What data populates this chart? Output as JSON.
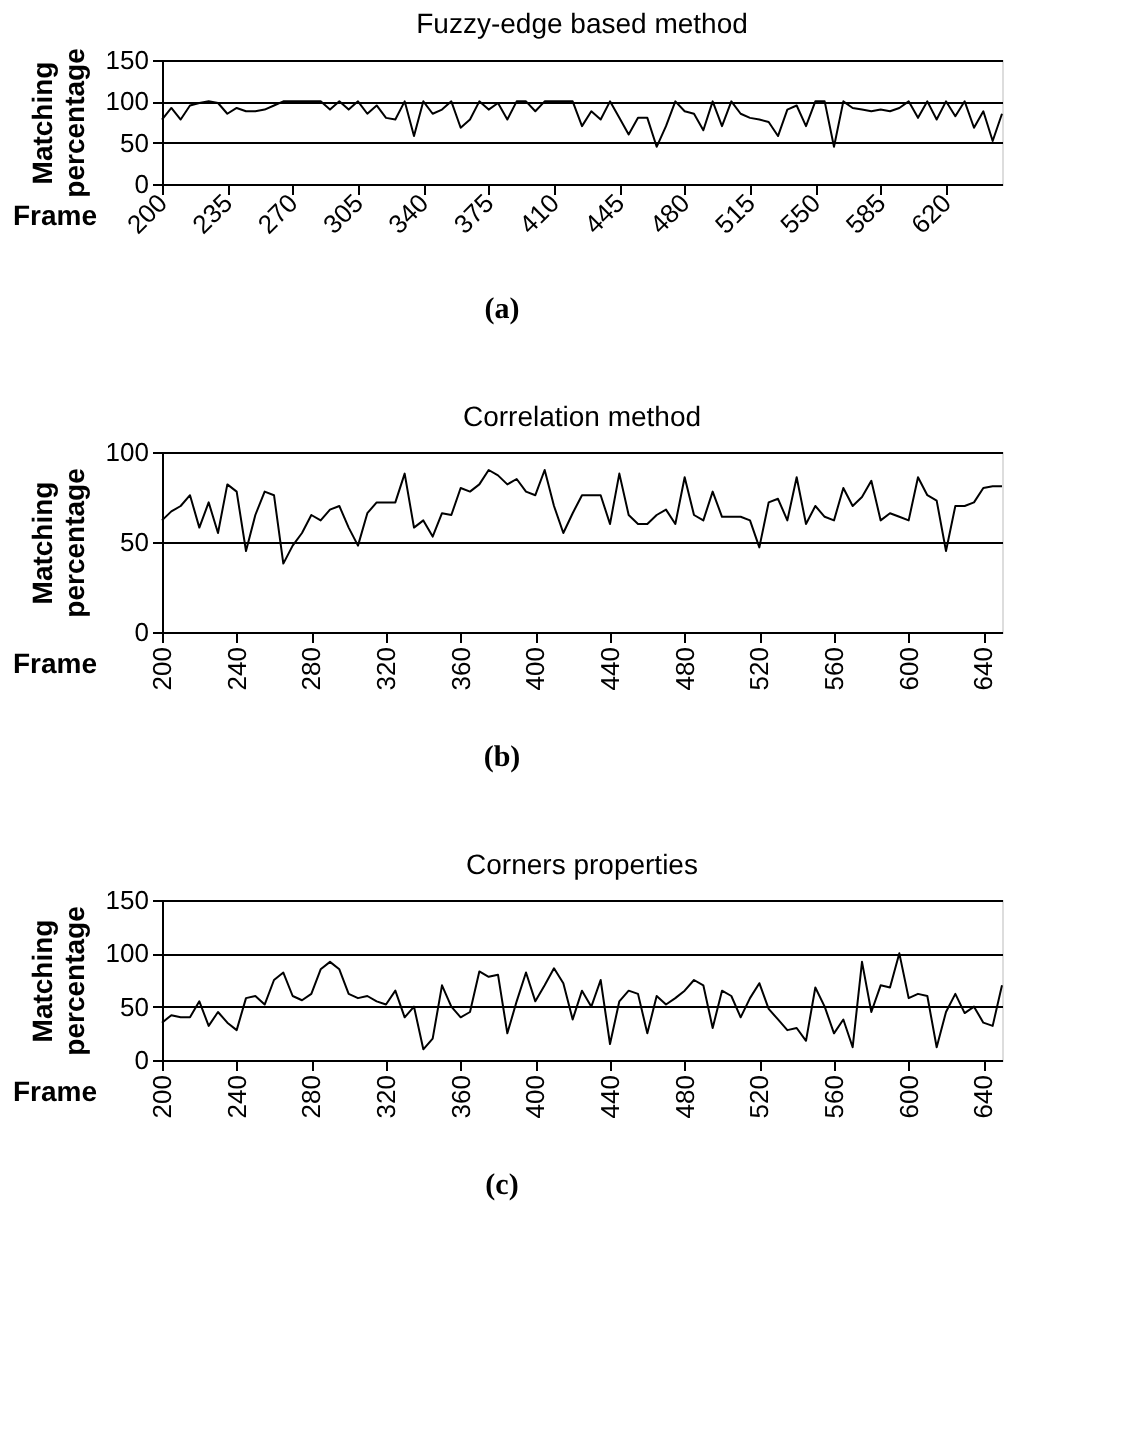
{
  "chart_data": [
    {
      "type": "line",
      "title": "Fuzzy-edge based method",
      "xlabel": "Frame",
      "ylabel": "Matching percentage",
      "annotations": [
        "(a)"
      ],
      "grid": "y",
      "marker": "none",
      "line_style": "solid",
      "xlim": [
        200,
        650
      ],
      "ylim": [
        0,
        150
      ],
      "yticks": [
        0,
        50,
        100,
        150
      ],
      "xticks": [
        200,
        235,
        270,
        305,
        340,
        375,
        410,
        445,
        480,
        515,
        550,
        585,
        620
      ],
      "x": [
        200,
        205,
        210,
        215,
        220,
        225,
        230,
        235,
        240,
        245,
        250,
        255,
        260,
        265,
        270,
        275,
        280,
        285,
        290,
        295,
        300,
        305,
        310,
        315,
        320,
        325,
        330,
        335,
        340,
        345,
        350,
        355,
        360,
        365,
        370,
        375,
        380,
        385,
        390,
        395,
        400,
        405,
        410,
        415,
        420,
        425,
        430,
        435,
        440,
        445,
        450,
        455,
        460,
        465,
        470,
        475,
        480,
        485,
        490,
        495,
        500,
        505,
        510,
        515,
        520,
        525,
        530,
        535,
        540,
        545,
        550,
        555,
        560,
        565,
        570,
        575,
        580,
        585,
        590,
        595,
        600,
        605,
        610,
        615,
        620,
        625,
        630,
        635,
        640,
        645,
        650
      ],
      "series": [
        {
          "color": "#000000",
          "values": [
            78,
            92,
            78,
            95,
            98,
            100,
            98,
            85,
            92,
            88,
            88,
            90,
            95,
            100,
            100,
            100,
            100,
            100,
            90,
            100,
            90,
            100,
            85,
            95,
            80,
            78,
            100,
            58,
            100,
            85,
            90,
            100,
            68,
            78,
            100,
            90,
            98,
            78,
            100,
            100,
            88,
            100,
            100,
            100,
            100,
            70,
            88,
            78,
            100,
            80,
            60,
            80,
            80,
            45,
            70,
            100,
            88,
            85,
            65,
            100,
            70,
            100,
            85,
            80,
            78,
            75,
            58,
            90,
            95,
            70,
            100,
            100,
            45,
            100,
            92,
            90,
            88,
            90,
            88,
            92,
            100,
            80,
            100,
            78,
            100,
            82,
            100,
            68,
            88,
            52,
            85
          ]
        }
      ]
    },
    {
      "type": "line",
      "title": "Correlation method",
      "xlabel": "Frame",
      "ylabel": "Matching percentage",
      "annotations": [
        "(b)"
      ],
      "grid": "y",
      "marker": "none",
      "line_style": "solid",
      "xlim": [
        200,
        650
      ],
      "ylim": [
        0,
        100
      ],
      "yticks": [
        0,
        50,
        100
      ],
      "xticks": [
        200,
        240,
        280,
        320,
        360,
        400,
        440,
        480,
        520,
        560,
        600,
        640
      ],
      "x": [
        200,
        205,
        210,
        215,
        220,
        225,
        230,
        235,
        240,
        245,
        250,
        255,
        260,
        265,
        270,
        275,
        280,
        285,
        290,
        295,
        300,
        305,
        310,
        315,
        320,
        325,
        330,
        335,
        340,
        345,
        350,
        355,
        360,
        365,
        370,
        375,
        380,
        385,
        390,
        395,
        400,
        405,
        410,
        415,
        420,
        425,
        430,
        435,
        440,
        445,
        450,
        455,
        460,
        465,
        470,
        475,
        480,
        485,
        490,
        495,
        500,
        505,
        510,
        515,
        520,
        525,
        530,
        535,
        540,
        545,
        550,
        555,
        560,
        565,
        570,
        575,
        580,
        585,
        590,
        595,
        600,
        605,
        610,
        615,
        620,
        625,
        630,
        635,
        640,
        645,
        650
      ],
      "series": [
        {
          "color": "#000000",
          "values": [
            62,
            67,
            70,
            76,
            58,
            72,
            55,
            82,
            78,
            45,
            65,
            78,
            76,
            38,
            48,
            55,
            65,
            62,
            68,
            70,
            58,
            48,
            66,
            72,
            72,
            72,
            88,
            58,
            62,
            53,
            66,
            65,
            80,
            78,
            82,
            90,
            87,
            82,
            85,
            78,
            76,
            90,
            70,
            55,
            66,
            76,
            76,
            76,
            60,
            88,
            65,
            60,
            60,
            65,
            68,
            60,
            86,
            65,
            62,
            78,
            64,
            64,
            64,
            62,
            47,
            72,
            74,
            62,
            86,
            60,
            70,
            64,
            62,
            80,
            70,
            75,
            84,
            62,
            66,
            64,
            62,
            86,
            76,
            73,
            45,
            70,
            70,
            72,
            80,
            81,
            81
          ]
        }
      ]
    },
    {
      "type": "line",
      "title": "Corners properties",
      "xlabel": "Frame",
      "ylabel": "Matching percentage",
      "annotations": [
        "(c)"
      ],
      "grid": "y",
      "marker": "none",
      "line_style": "solid",
      "xlim": [
        200,
        650
      ],
      "ylim": [
        0,
        150
      ],
      "yticks": [
        0,
        50,
        100,
        150
      ],
      "xticks": [
        200,
        240,
        280,
        320,
        360,
        400,
        440,
        480,
        520,
        560,
        600,
        640
      ],
      "x": [
        200,
        205,
        210,
        215,
        220,
        225,
        230,
        235,
        240,
        245,
        250,
        255,
        260,
        265,
        270,
        275,
        280,
        285,
        290,
        295,
        300,
        305,
        310,
        315,
        320,
        325,
        330,
        335,
        340,
        345,
        350,
        355,
        360,
        365,
        370,
        375,
        380,
        385,
        390,
        395,
        400,
        405,
        410,
        415,
        420,
        425,
        430,
        435,
        440,
        445,
        450,
        455,
        460,
        465,
        470,
        475,
        480,
        485,
        490,
        495,
        500,
        505,
        510,
        515,
        520,
        525,
        530,
        535,
        540,
        545,
        550,
        555,
        560,
        565,
        570,
        575,
        580,
        585,
        590,
        595,
        600,
        605,
        610,
        615,
        620,
        625,
        630,
        635,
        640,
        645,
        650
      ],
      "series": [
        {
          "color": "#000000",
          "values": [
            35,
            42,
            40,
            40,
            55,
            32,
            45,
            35,
            28,
            58,
            60,
            52,
            75,
            82,
            60,
            56,
            62,
            85,
            92,
            85,
            62,
            58,
            60,
            55,
            52,
            65,
            40,
            50,
            10,
            20,
            70,
            50,
            40,
            45,
            83,
            78,
            80,
            25,
            55,
            82,
            55,
            70,
            86,
            72,
            38,
            65,
            50,
            75,
            15,
            55,
            65,
            62,
            25,
            60,
            52,
            58,
            65,
            75,
            70,
            30,
            65,
            60,
            40,
            58,
            72,
            48,
            38,
            28,
            30,
            18,
            68,
            50,
            25,
            38,
            12,
            92,
            45,
            70,
            68,
            100,
            58,
            62,
            60,
            12,
            45,
            62,
            44,
            50,
            35,
            32,
            70
          ]
        }
      ]
    }
  ]
}
